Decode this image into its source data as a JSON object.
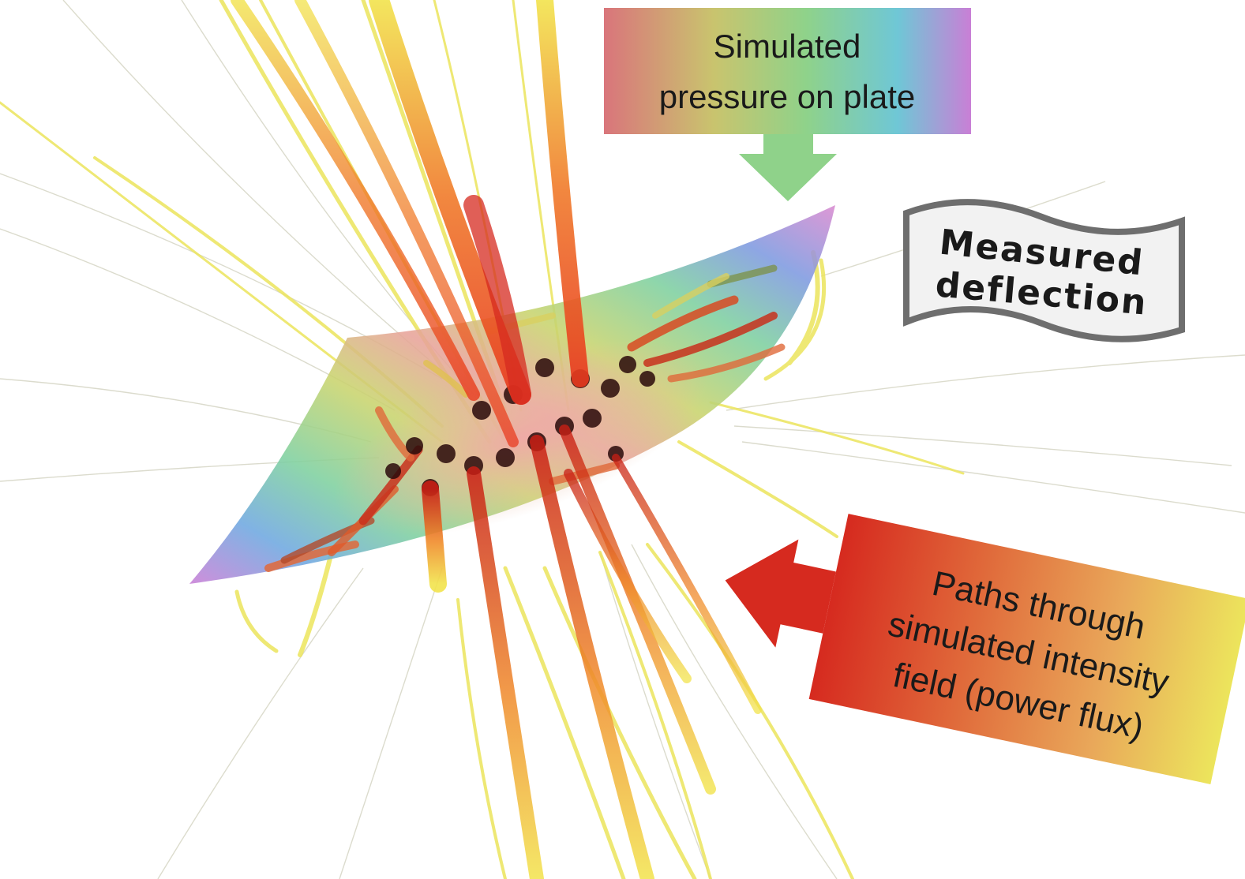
{
  "callouts": {
    "pressure": {
      "line1": "Simulated",
      "line2": "pressure on plate"
    },
    "deflection": {
      "line1": "Measured",
      "line2": "deflection"
    },
    "paths": {
      "line1": "Paths through",
      "line2": "simulated intensity",
      "line3": "field (power flux)"
    }
  },
  "colors": {
    "rainbow": [
      "#d9757b",
      "#c9c46e",
      "#8fd28a",
      "#6fc7d6",
      "#c97fd6"
    ],
    "heat": [
      "#d62a1f",
      "#e0693a",
      "#e9a85a",
      "#ece55c"
    ],
    "path_core": "#8b0000",
    "path_tail": "#f0e24a",
    "banner_fill": "#f2f2f2",
    "banner_stroke": "#6e6e6e"
  }
}
